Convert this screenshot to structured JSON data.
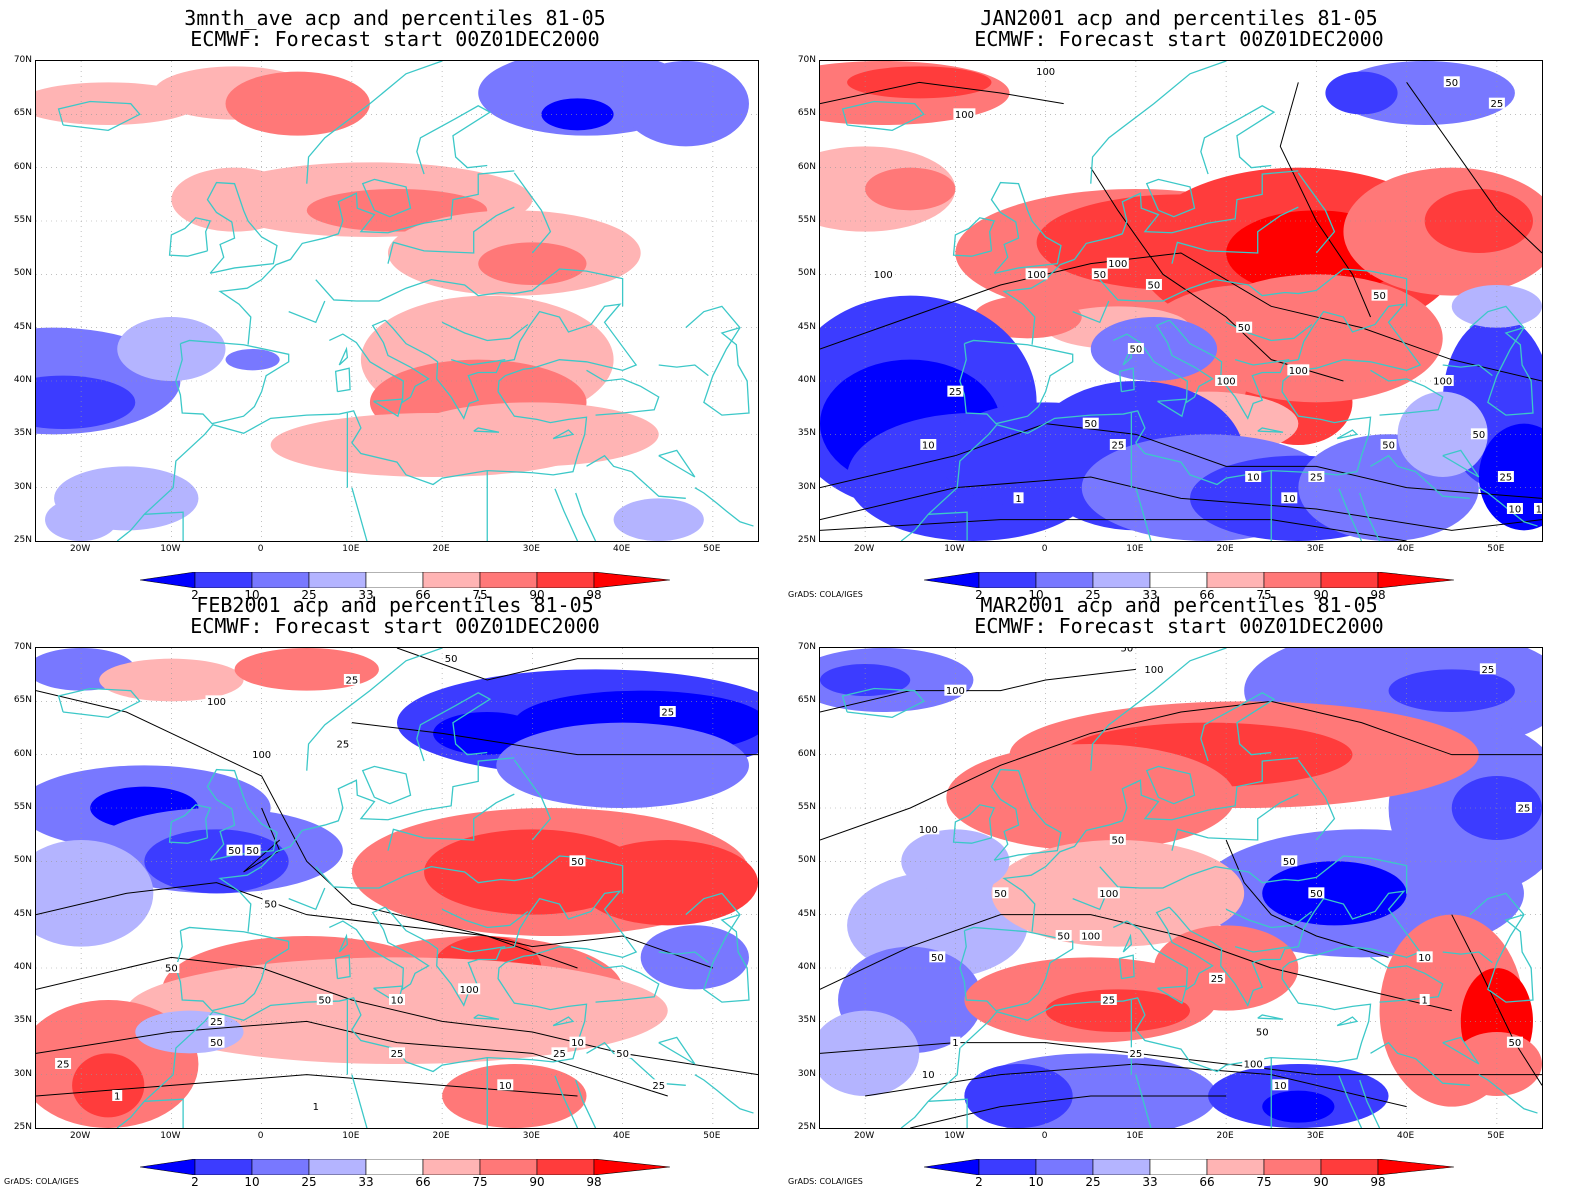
{
  "credit": "GrADS: COLA/IGES",
  "colors": {
    "p2": "#0000ff",
    "p10": "#3c3cff",
    "p25": "#7878ff",
    "p33": "#b4b4ff",
    "p66": "#ffb4b4",
    "p75": "#ff7878",
    "p90": "#ff3c3c",
    "p98": "#ff0000",
    "coast": "#3cc8c8",
    "contour": "#000000"
  },
  "axes": {
    "lat_labels": [
      "70N",
      "65N",
      "60N",
      "55N",
      "50N",
      "45N",
      "40N",
      "35N",
      "30N",
      "25N"
    ],
    "lon_labels": [
      "20W",
      "10W",
      "0",
      "10E",
      "20E",
      "30E",
      "40E",
      "50E"
    ]
  },
  "colorbar": {
    "labels": [
      "2",
      "10",
      "25",
      "33",
      "66",
      "75",
      "90",
      "98"
    ]
  },
  "panels": [
    {
      "title_line1": "3mnth_ave acp and percentiles 81-05",
      "title_line2": "ECMWF: Forecast start 00Z01DEC2000",
      "show_credit": false,
      "contour_labels": []
    },
    {
      "title_line1": "JAN2001 acp and percentiles 81-05",
      "title_line2": "ECMWF: Forecast start 00Z01DEC2000",
      "show_credit": true,
      "contour_labels": [
        "100",
        "50",
        "25",
        "100",
        "100",
        "100",
        "100",
        "50",
        "50",
        "100",
        "50",
        "100",
        "50",
        "50",
        "25",
        "10",
        "50",
        "25",
        "1",
        "10",
        "25",
        "10",
        "100",
        "50",
        "10",
        "50",
        "25",
        "10"
      ]
    },
    {
      "title_line1": "FEB2001 acp and percentiles 81-05",
      "title_line2": "ECMWF: Forecast start 00Z01DEC2000",
      "show_credit": true,
      "contour_labels": [
        "50",
        "25",
        "25",
        "25",
        "100",
        "100",
        "50",
        "50",
        "50",
        "50",
        "25",
        "50",
        "10",
        "50",
        "100",
        "50",
        "25",
        "10",
        "25",
        "1",
        "1",
        "25",
        "50",
        "10",
        "25"
      ]
    },
    {
      "title_line1": "MAR2001 acp and percentiles 81-05",
      "title_line2": "ECMWF: Forecast start 00Z01DEC2000",
      "show_credit": true,
      "contour_labels": [
        "50",
        "100",
        "100",
        "25",
        "100",
        "25",
        "50",
        "50",
        "100",
        "50",
        "100",
        "50",
        "50",
        "50",
        "25",
        "10",
        "1",
        "25",
        "10",
        "1",
        "25",
        "100",
        "50",
        "10",
        "50"
      ]
    }
  ]
}
